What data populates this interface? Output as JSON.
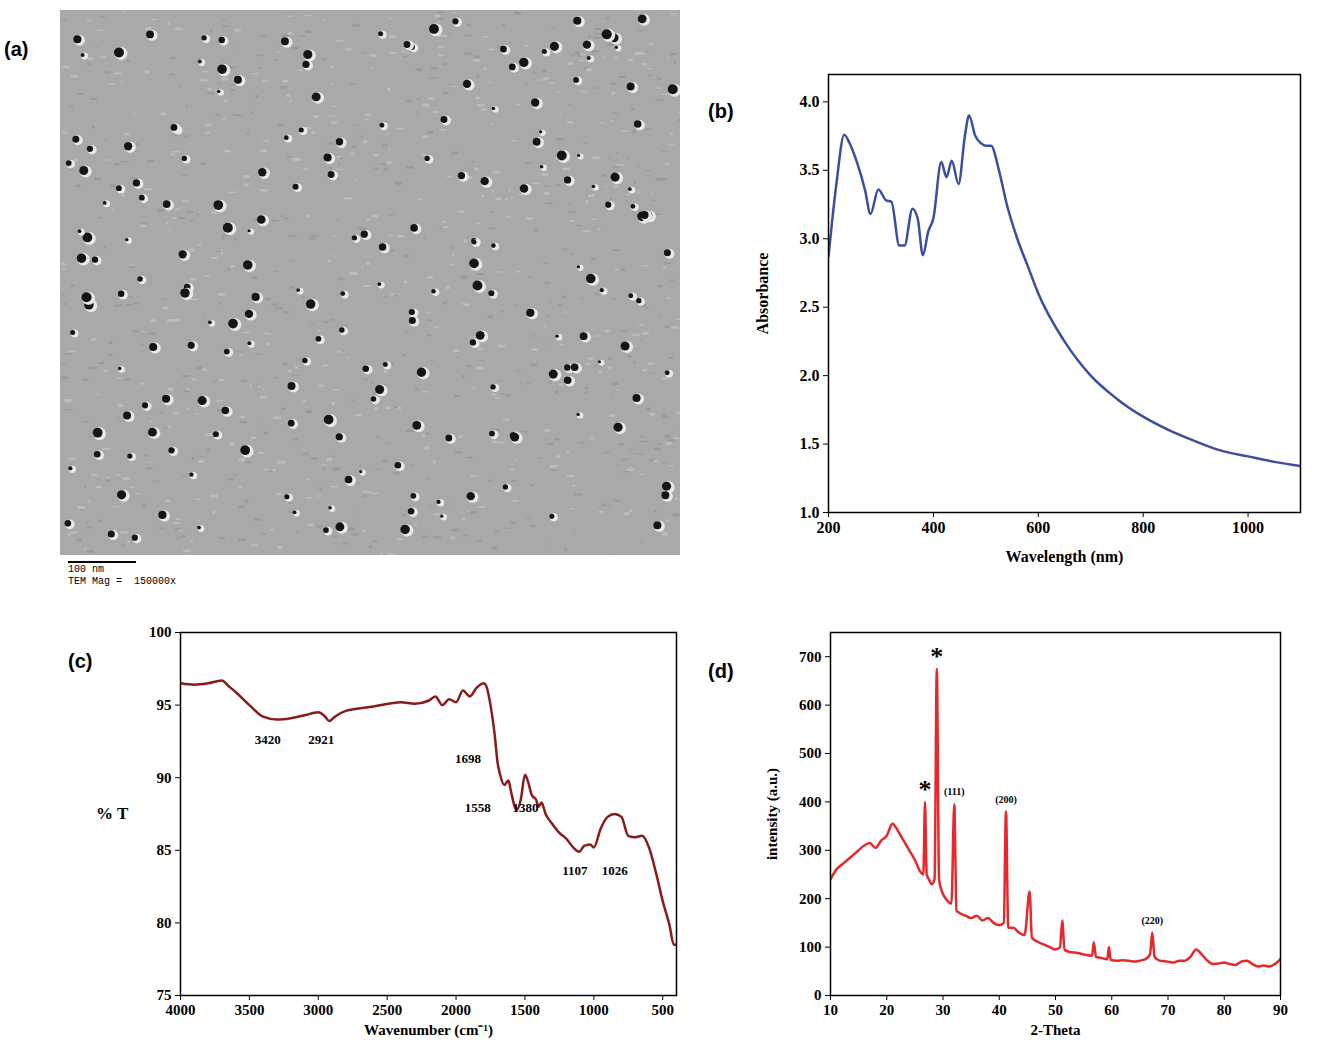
{
  "chart_data": [
    {
      "type": "image",
      "panel": "(a)",
      "scale_bar": "100 nm",
      "caption": "TEM Mag =  150000x"
    },
    {
      "type": "line",
      "panel": "(b)",
      "x_label": "Wavelength (nm)",
      "y_label": "Absorbance",
      "color": "#3b4ea0",
      "xlim": [
        200,
        1100
      ],
      "xticks": [
        200,
        400,
        600,
        800,
        1000
      ],
      "ylim": [
        1.0,
        4.2
      ],
      "yticks": [
        {
          "value": 1,
          "label": "1.0"
        },
        1.5,
        {
          "value": 2,
          "label": "2.0"
        },
        2.5,
        {
          "value": 3,
          "label": "3.0"
        },
        3.5,
        {
          "value": 4,
          "label": "4.0"
        }
      ],
      "x": [
        200,
        215,
        230,
        240,
        255,
        270,
        280,
        295,
        310,
        320,
        335,
        345,
        360,
        370,
        380,
        390,
        400,
        415,
        425,
        435,
        448,
        460,
        468,
        480,
        490,
        500,
        510,
        525,
        540,
        560,
        580,
        600,
        650,
        700,
        750,
        800,
        850,
        900,
        950,
        1000,
        1050,
        1100
      ],
      "values": [
        2.87,
        3.4,
        3.76,
        3.7,
        3.55,
        3.35,
        3.18,
        3.36,
        3.28,
        3.27,
        2.95,
        2.95,
        3.22,
        3.15,
        2.88,
        3.05,
        3.15,
        3.56,
        3.45,
        3.57,
        3.4,
        3.75,
        3.9,
        3.75,
        3.7,
        3.68,
        3.68,
        3.5,
        3.25,
        3.0,
        2.8,
        2.6,
        2.25,
        2.0,
        1.83,
        1.7,
        1.6,
        1.52,
        1.45,
        1.41,
        1.37,
        1.34
      ],
      "grid": false
    },
    {
      "type": "line",
      "panel": "(c)",
      "x_label": "Wavenumber (cm⁻¹)",
      "y_label": "% T",
      "color": "#8b1a1a",
      "xlim": [
        4000,
        400
      ],
      "xticks": [
        4000,
        3500,
        3000,
        2500,
        2000,
        1500,
        1000,
        500
      ],
      "ylim": [
        75,
        100
      ],
      "yticks": [
        75,
        80,
        85,
        90,
        95,
        100
      ],
      "x": [
        4000,
        3900,
        3800,
        3700,
        3650,
        3600,
        3500,
        3400,
        3300,
        3200,
        3100,
        3000,
        2950,
        2921,
        2880,
        2800,
        2600,
        2400,
        2300,
        2200,
        2150,
        2100,
        2050,
        2000,
        1950,
        1900,
        1850,
        1800,
        1780,
        1750,
        1720,
        1698,
        1680,
        1650,
        1620,
        1600,
        1570,
        1558,
        1530,
        1500,
        1480,
        1450,
        1420,
        1400,
        1380,
        1350,
        1300,
        1250,
        1200,
        1150,
        1107,
        1070,
        1026,
        1000,
        950,
        900,
        850,
        800,
        750,
        700,
        650,
        600,
        550,
        500,
        450,
        420,
        400
      ],
      "values": [
        96.5,
        96.4,
        96.5,
        96.7,
        96.3,
        95.9,
        95.0,
        94.2,
        94.0,
        94.1,
        94.3,
        94.5,
        94.2,
        93.9,
        94.2,
        94.6,
        94.9,
        95.2,
        95.1,
        95.3,
        95.6,
        95.0,
        95.4,
        95.2,
        96.0,
        95.6,
        96.2,
        96.5,
        96.3,
        95.0,
        93.0,
        91.0,
        90.2,
        89.5,
        89.8,
        89.0,
        87.9,
        87.8,
        88.5,
        90.2,
        89.8,
        88.8,
        88.5,
        88.0,
        88.3,
        87.5,
        86.8,
        86.2,
        85.8,
        85.2,
        84.9,
        85.3,
        85.4,
        85.2,
        86.5,
        87.3,
        87.5,
        87.3,
        86.0,
        85.9,
        86.0,
        85.2,
        83.5,
        81.5,
        79.8,
        78.5,
        78.5
      ],
      "annotations": [
        {
          "text": "3420",
          "x": 3367,
          "y": 92.6
        },
        {
          "text": "2921",
          "x": 2978,
          "y": 92.6
        },
        {
          "text": "1698",
          "x": 1914,
          "y": 91.3
        },
        {
          "text": "1558",
          "x": 1842,
          "y": 87.9
        },
        {
          "text": "1380",
          "x": 1496,
          "y": 87.9
        },
        {
          "text": "1107",
          "x": 1137,
          "y": 83.6
        },
        {
          "text": "1026",
          "x": 849,
          "y": 83.6
        }
      ],
      "grid": false
    },
    {
      "type": "line",
      "panel": "(d)",
      "x_label": "2-Theta",
      "y_label": "intensity (a.u.)",
      "color": "#e8272a",
      "xlim": [
        10,
        90
      ],
      "xticks": [
        10,
        20,
        30,
        40,
        50,
        60,
        70,
        80,
        90
      ],
      "ylim": [
        0,
        750
      ],
      "yticks": [
        0,
        100,
        200,
        300,
        400,
        500,
        600,
        700
      ],
      "x": [
        10,
        11,
        12,
        13,
        14,
        15,
        16,
        17,
        18,
        19,
        20,
        21,
        22,
        23,
        24,
        25,
        26,
        26.5,
        26.8,
        27.1,
        27.5,
        28,
        28.5,
        28.9,
        29.3,
        29.8,
        30.5,
        31.5,
        32.0,
        32.4,
        33,
        34,
        35,
        36,
        37,
        38,
        39,
        40,
        40.8,
        41.2,
        41.6,
        42.5,
        43.5,
        44.5,
        45.4,
        45.8,
        47,
        48,
        49,
        50,
        50.8,
        51.2,
        51.6,
        52.5,
        54,
        55,
        56.5,
        56.8,
        57.2,
        58,
        59.2,
        59.5,
        59.8,
        61,
        62,
        63,
        64,
        65,
        66,
        66.8,
        67.2,
        67.6,
        68.5,
        70,
        71,
        72,
        73,
        74,
        75,
        76,
        77,
        78,
        79,
        80,
        81,
        82,
        83,
        84,
        85,
        86,
        87,
        88,
        89,
        90
      ],
      "values": [
        240,
        260,
        270,
        280,
        290,
        300,
        310,
        315,
        305,
        320,
        330,
        355,
        340,
        320,
        300,
        280,
        255,
        250,
        400,
        250,
        240,
        230,
        240,
        675,
        240,
        215,
        200,
        190,
        395,
        175,
        170,
        165,
        160,
        165,
        155,
        160,
        150,
        145,
        150,
        380,
        140,
        140,
        130,
        125,
        215,
        120,
        110,
        105,
        100,
        95,
        100,
        155,
        95,
        90,
        88,
        85,
        82,
        110,
        80,
        78,
        75,
        100,
        74,
        72,
        73,
        72,
        70,
        72,
        75,
        85,
        130,
        80,
        72,
        70,
        68,
        72,
        72,
        80,
        95,
        85,
        72,
        65,
        66,
        68,
        65,
        63,
        70,
        72,
        65,
        60,
        62,
        60,
        65,
        75
      ],
      "annotations": [
        {
          "text": "*",
          "x": 26.8,
          "y": 425
        },
        {
          "text": "*",
          "x": 28.9,
          "y": 700
        },
        {
          "text": "(111)",
          "x": 32.0,
          "y": 420
        },
        {
          "text": "(200)",
          "x": 41.2,
          "y": 405
        },
        {
          "text": "(220)",
          "x": 67.2,
          "y": 155
        }
      ],
      "grid": false
    }
  ]
}
